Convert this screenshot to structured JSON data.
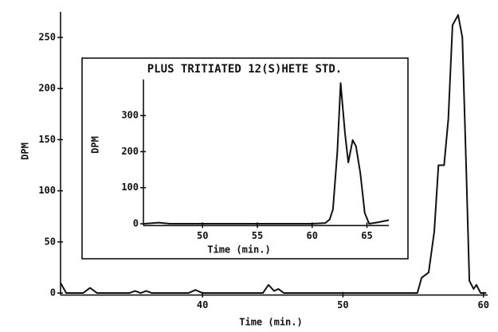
{
  "chart_data": [
    {
      "type": "line",
      "xlabel": "Time (min.)",
      "ylabel": "DPM",
      "x": [
        29.9,
        30.3,
        30.7,
        31.5,
        32,
        32.5,
        34.8,
        35.2,
        35.6,
        36,
        36.4,
        39,
        39.5,
        40,
        44.3,
        44.7,
        45.1,
        45.4,
        45.8,
        55.3,
        55.6,
        56.1,
        56.5,
        56.8,
        57.2,
        57.5,
        57.8,
        58.2,
        58.5,
        58.8,
        59,
        59.3,
        59.5,
        59.8,
        60.2
      ],
      "series": [
        {
          "name": "DPM",
          "color": "#111111",
          "values": [
            10,
            0,
            0,
            0,
            5,
            0,
            0,
            2,
            0,
            2,
            0,
            0,
            3,
            0,
            0,
            8,
            2,
            4,
            0,
            0,
            15,
            20,
            60,
            125,
            125,
            170,
            262,
            272,
            250,
            110,
            12,
            4,
            8,
            0,
            0
          ]
        }
      ],
      "xlim": [
        29.9,
        60.3
      ],
      "ylim": [
        -2,
        275
      ],
      "xticks": [
        40,
        50,
        60
      ],
      "yticks": [
        0,
        50,
        100,
        150,
        200,
        250
      ]
    },
    {
      "type": "line",
      "title": "PLUS TRITIATED 12(S)HETE STD.",
      "xlabel": "Time (min.)",
      "ylabel": "DPM",
      "x": [
        44.7,
        46,
        47,
        50,
        55,
        60,
        61.2,
        61.6,
        61.9,
        62.3,
        62.6,
        63,
        63.3,
        63.7,
        64,
        64.4,
        64.8,
        65.2,
        66,
        67
      ],
      "series": [
        {
          "name": "DPM",
          "color": "#111111",
          "values": [
            0,
            3,
            0,
            0,
            0,
            0,
            2,
            12,
            40,
            200,
            390,
            250,
            170,
            232,
            215,
            140,
            30,
            0,
            4,
            10
          ]
        }
      ],
      "xlim": [
        44.6,
        67
      ],
      "ylim": [
        -5,
        400
      ],
      "xticks": [
        50,
        55,
        60,
        65
      ],
      "yticks": [
        0,
        100,
        200,
        300
      ]
    }
  ]
}
